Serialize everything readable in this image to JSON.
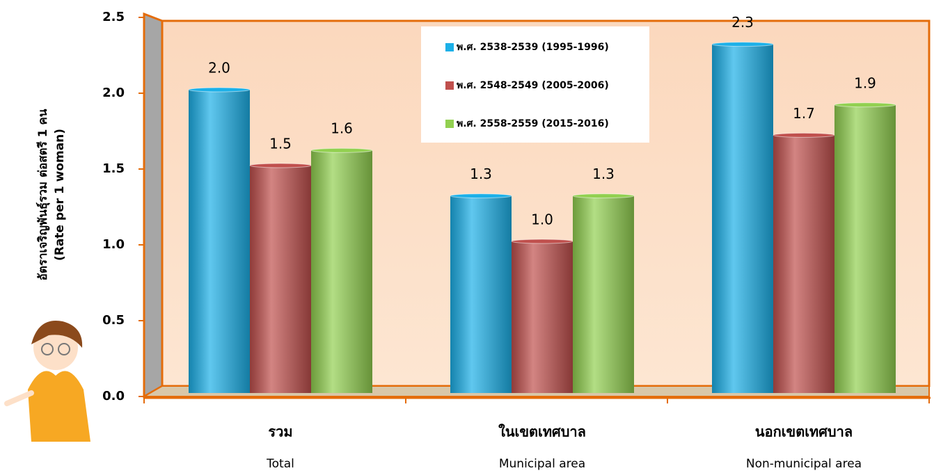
{
  "chart_data": {
    "type": "bar",
    "y_title": [
      "อัตราเจริญพันธุ์รวม ต่อสตรี 1 คน",
      "(Rate per 1 woman)"
    ],
    "categories": [
      "รวม",
      "ในเขตเทศบาล",
      "นอกเขตเทศบาล"
    ],
    "categories_en": [
      "Total",
      "Municipal area",
      "Non-municipal area"
    ],
    "series": [
      {
        "name": "พ.ศ. 2538-2539 (1995-1996)",
        "color": "#1cb0e8",
        "values": [
          2.0,
          1.3,
          2.3
        ],
        "value_labels": [
          "2.0",
          "1.3",
          "2.3"
        ]
      },
      {
        "name": "พ.ศ. 2548-2549 (2005-2006)",
        "color": "#c0504d",
        "values": [
          1.5,
          1.0,
          1.7
        ],
        "value_labels": [
          "1.5",
          "1.0",
          "1.7"
        ]
      },
      {
        "name": "พ.ศ. 2558-2559 (2015-2016)",
        "color": "#92d050",
        "values": [
          1.6,
          1.3,
          1.9
        ],
        "value_labels": [
          "1.6",
          "1.3",
          "1.9"
        ]
      }
    ],
    "ylim": [
      0,
      2.5
    ],
    "yticks": [
      {
        "value": 0,
        "label": "0.0"
      },
      0.5,
      {
        "value": 1,
        "label": "1.0"
      },
      1.5,
      {
        "value": 2,
        "label": "2.0"
      },
      2.5
    ],
    "grid": false,
    "legend": "top-center"
  }
}
